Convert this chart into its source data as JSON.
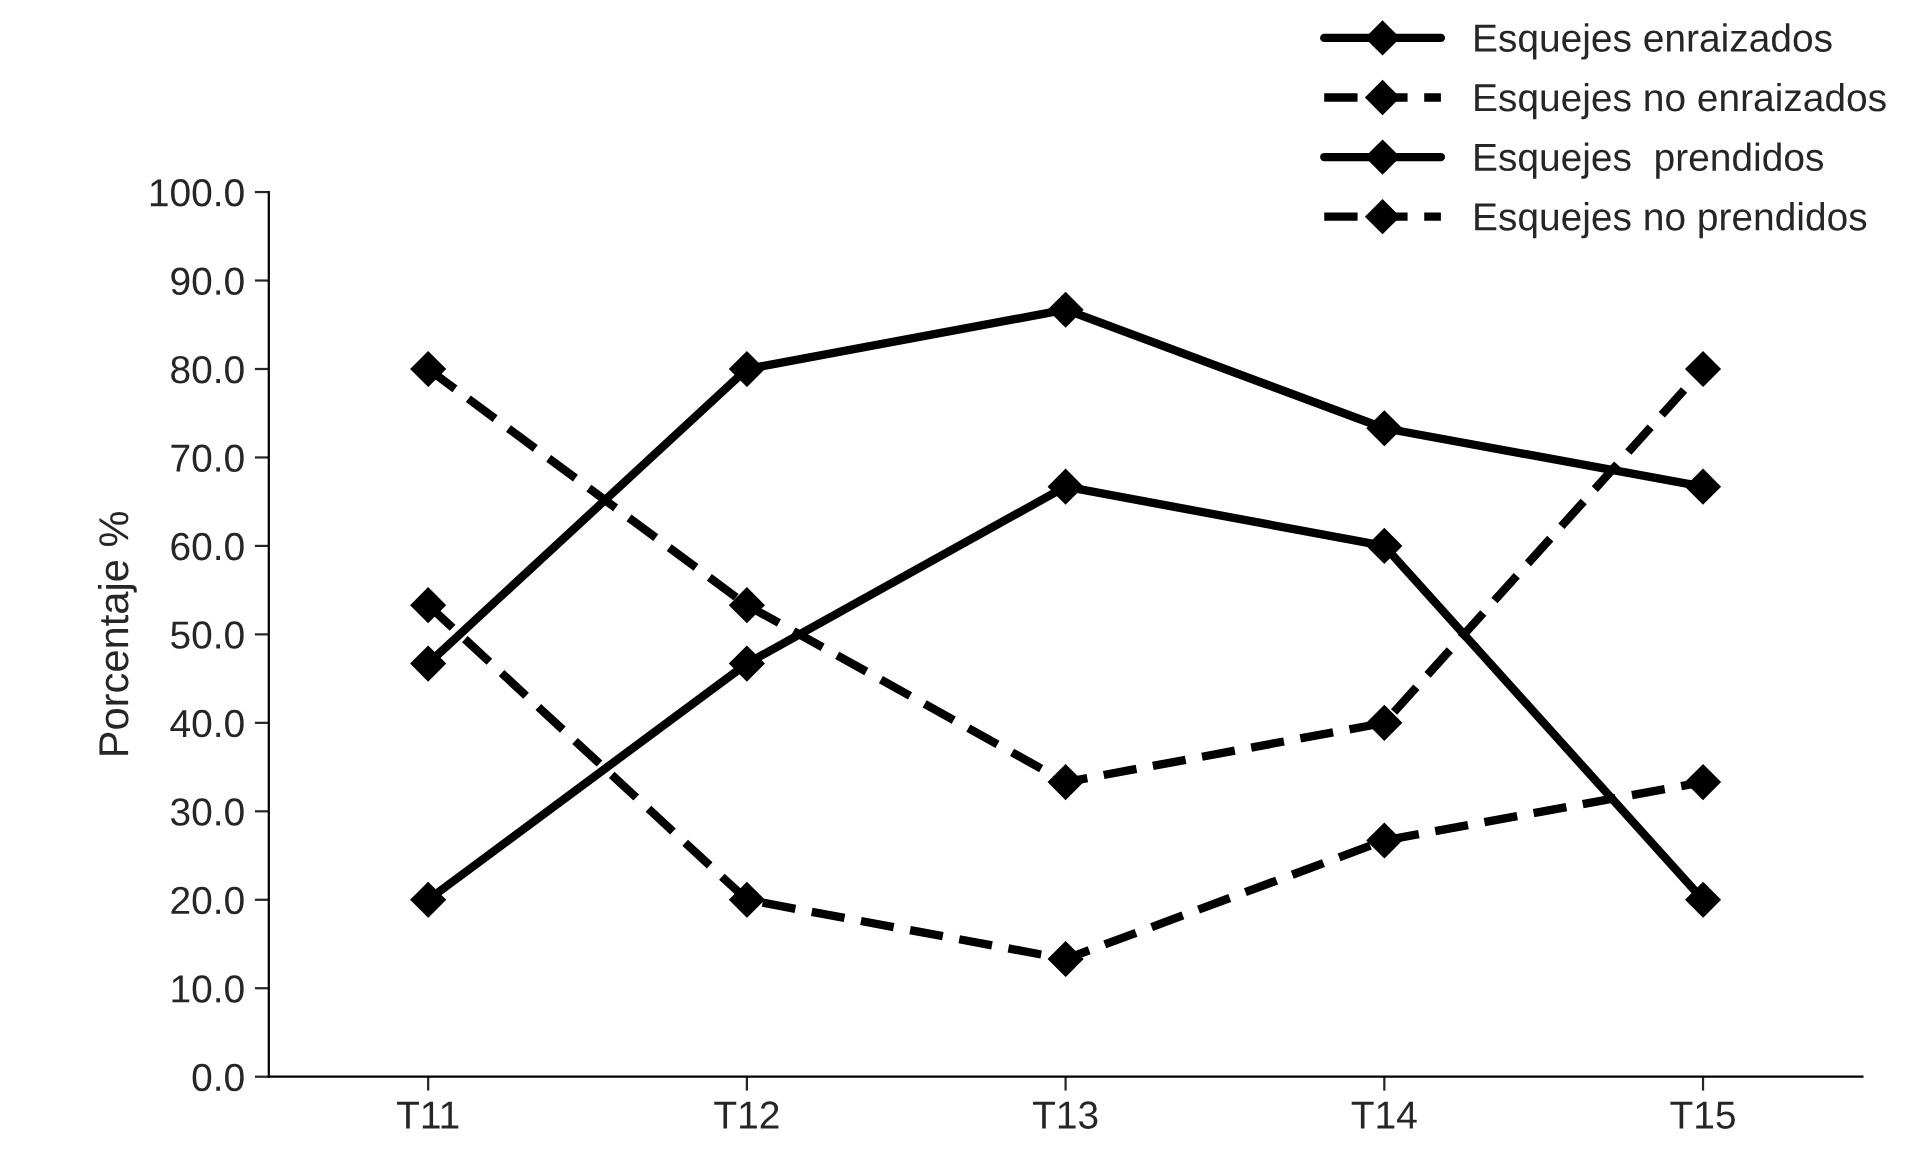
{
  "chart_data": {
    "type": "line",
    "ylabel": "Porcentaje %",
    "categories": [
      "T11",
      "T12",
      "T13",
      "T14",
      "T15"
    ],
    "series": [
      {
        "name": "Esquejes enraizados",
        "color": "#000000",
        "line_style": "solid",
        "values": [
          46.7,
          80.0,
          86.7,
          73.3,
          66.7
        ]
      },
      {
        "name": "Esquejes no enraizados",
        "color": "#000000",
        "line_style": "dashed",
        "values": [
          53.3,
          20.0,
          13.3,
          26.7,
          33.3
        ]
      },
      {
        "name": "Esquejes  prendidos",
        "color": "#000000",
        "line_style": "solid",
        "values": [
          20.0,
          46.7,
          66.7,
          60.0,
          20.0
        ]
      },
      {
        "name": "Esquejes no prendidos",
        "color": "#000000",
        "line_style": "dashed",
        "values": [
          80.0,
          53.3,
          33.3,
          40.0,
          80.0
        ]
      }
    ],
    "ylim": [
      0,
      100
    ],
    "yticks": [
      {
        "value": 0,
        "label": "0.0"
      },
      {
        "value": 10,
        "label": "10.0"
      },
      {
        "value": 20,
        "label": "20.0"
      },
      {
        "value": 30,
        "label": "30.0"
      },
      {
        "value": 40,
        "label": "40.0"
      },
      {
        "value": 50,
        "label": "50.0"
      },
      {
        "value": 60,
        "label": "60.0"
      },
      {
        "value": 70,
        "label": "70.0"
      },
      {
        "value": 80,
        "label": "80.0"
      },
      {
        "value": 90,
        "label": "90.0"
      },
      {
        "value": 100,
        "label": "100.0"
      }
    ],
    "marker": "diamond",
    "grid": false,
    "legend": "top right"
  }
}
